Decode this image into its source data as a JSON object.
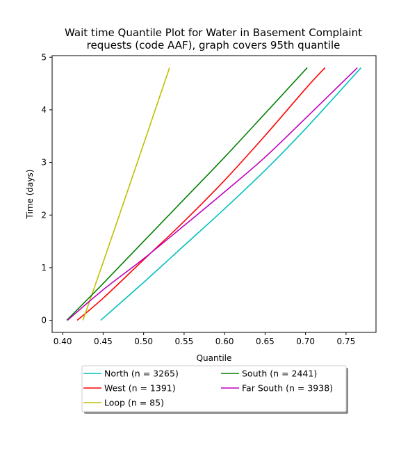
{
  "chart_data": {
    "type": "line",
    "title": [
      "Wait time Quantile Plot for Water in Basement Complaint",
      "requests (code AAF), graph covers 95th quantile"
    ],
    "xlabel": "Quantile",
    "ylabel": "Time (days)",
    "xlim": [
      0.387,
      0.787
    ],
    "ylim": [
      -0.23,
      5.03
    ],
    "xticks": [
      0.4,
      0.45,
      0.5,
      0.55,
      0.6,
      0.65,
      0.7,
      0.75
    ],
    "xtick_labels": [
      "0.40",
      "0.45",
      "0.50",
      "0.55",
      "0.60",
      "0.65",
      "0.70",
      "0.75"
    ],
    "yticks": [
      0,
      1,
      2,
      3,
      4,
      5
    ],
    "ytick_labels": [
      "0",
      "1",
      "2",
      "3",
      "4",
      "5"
    ],
    "grid": false,
    "legend_placement": "below-center",
    "series": [
      {
        "name": "North (n = 3265)",
        "color": "#00bfbf",
        "x": [
          0.447,
          0.5,
          0.55,
          0.6,
          0.65,
          0.7,
          0.7685
        ],
        "y": [
          0.0,
          0.72,
          1.42,
          2.12,
          2.85,
          3.64,
          4.8
        ]
      },
      {
        "name": "West (n = 1391)",
        "color": "#ff0000",
        "x": [
          0.418,
          0.45,
          0.5,
          0.55,
          0.6,
          0.65,
          0.7,
          0.724
        ],
        "y": [
          0.0,
          0.42,
          1.15,
          1.88,
          2.66,
          3.51,
          4.4,
          4.8
        ]
      },
      {
        "name": "Loop (n = 85)",
        "color": "#bfbf00",
        "x": [
          0.425,
          0.45,
          0.5,
          0.532
        ],
        "y": [
          0.0,
          1.1,
          3.35,
          4.8
        ]
      },
      {
        "name": "South (n = 2441)",
        "color": "#008000",
        "x": [
          0.405,
          0.45,
          0.5,
          0.55,
          0.6,
          0.65,
          0.702
        ],
        "y": [
          0.0,
          0.7,
          1.5,
          2.3,
          3.1,
          3.93,
          4.8
        ]
      },
      {
        "name": "Far South (n = 3938)",
        "color": "#bf00bf",
        "x": [
          0.406,
          0.45,
          0.5,
          0.55,
          0.6,
          0.65,
          0.7,
          0.764
        ],
        "y": [
          0.0,
          0.58,
          1.17,
          1.8,
          2.44,
          3.1,
          3.84,
          4.8
        ]
      }
    ],
    "legend_columns": [
      [
        0,
        1,
        2
      ],
      [
        3,
        4
      ]
    ]
  }
}
